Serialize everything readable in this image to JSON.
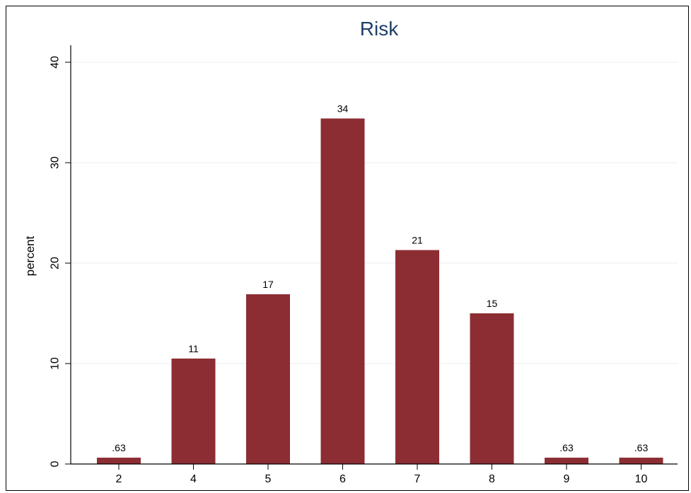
{
  "colors": {
    "bar": "#8c2d33",
    "title": "#1f3f6a",
    "grid": "#e9eef2",
    "axis": "#000000"
  },
  "chart_data": {
    "type": "bar",
    "title": "Risk",
    "xlabel": "",
    "ylabel": "percent",
    "categories": [
      "2",
      "4",
      "5",
      "6",
      "7",
      "8",
      "9",
      "10"
    ],
    "values": [
      0.63,
      10.5,
      16.9,
      34.4,
      21.3,
      15.0,
      0.63,
      0.63
    ],
    "value_labels": [
      ".63",
      "11",
      "17",
      "34",
      "21",
      "15",
      ".63",
      ".63"
    ],
    "ylim": [
      0,
      40
    ],
    "yticks": [
      0,
      10,
      20,
      30,
      40
    ],
    "ytick_labels": [
      "0",
      "10",
      "20",
      "30",
      "40"
    ],
    "grid": true
  }
}
